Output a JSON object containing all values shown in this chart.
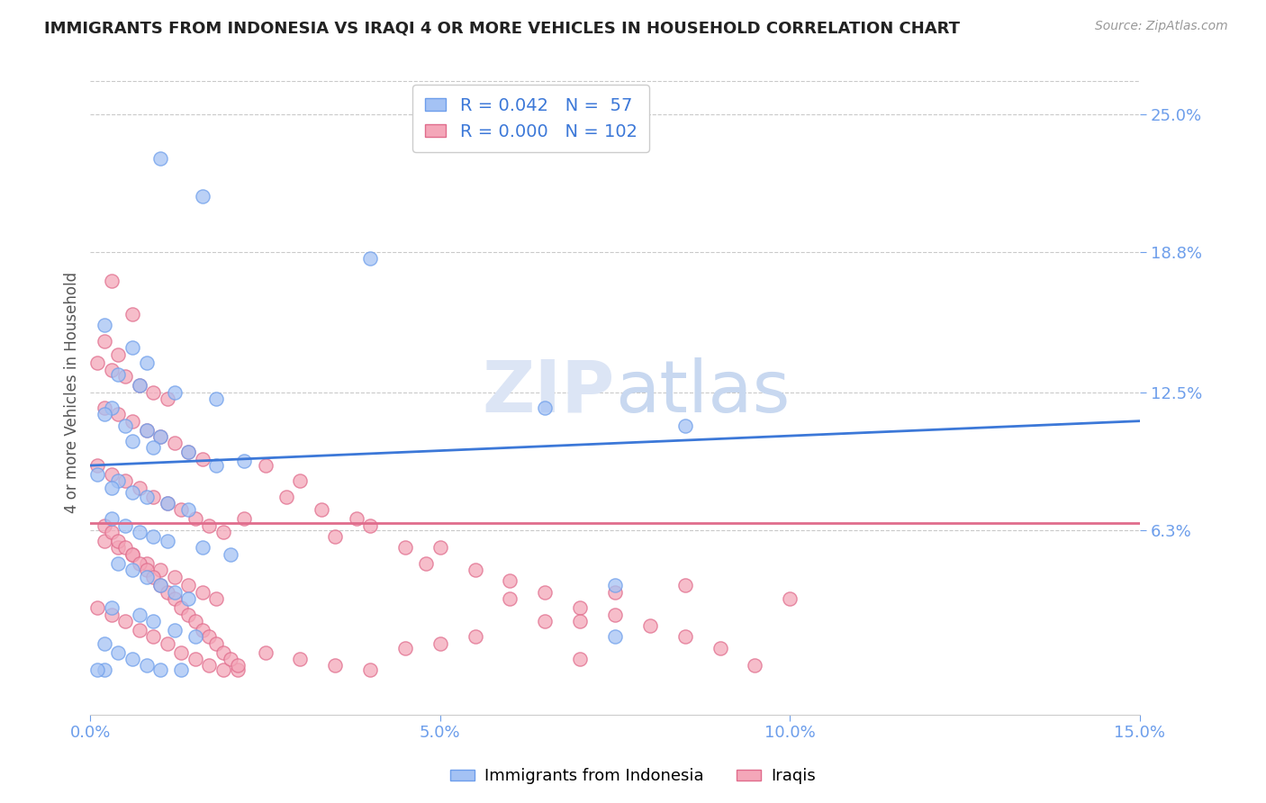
{
  "title": "IMMIGRANTS FROM INDONESIA VS IRAQI 4 OR MORE VEHICLES IN HOUSEHOLD CORRELATION CHART",
  "source": "Source: ZipAtlas.com",
  "ylabel": "4 or more Vehicles in Household",
  "legend_labels": [
    "Immigrants from Indonesia",
    "Iraqis"
  ],
  "r_values": [
    0.042,
    0.0
  ],
  "n_values": [
    57,
    102
  ],
  "xlim": [
    0.0,
    0.15
  ],
  "ylim": [
    -0.02,
    0.27
  ],
  "yticks": [
    0.063,
    0.125,
    0.188,
    0.25
  ],
  "ytick_labels": [
    "6.3%",
    "12.5%",
    "18.8%",
    "25.0%"
  ],
  "xticks": [
    0.0,
    0.05,
    0.1,
    0.15
  ],
  "xtick_labels": [
    "0.0%",
    "5.0%",
    "10.0%",
    "15.0%"
  ],
  "blue_color": "#a4c2f4",
  "pink_color": "#f4a7b9",
  "blue_edge_color": "#6d9eeb",
  "pink_edge_color": "#e06c8c",
  "blue_line_color": "#3c78d8",
  "pink_line_color": "#e06c8c",
  "tick_label_color": "#6d9eeb",
  "watermark_color": "#dce5f5",
  "background_color": "#ffffff",
  "grid_color": "#c9c9c9",
  "legend_r_color": "#3c78d8",
  "blue_trend": [
    0.0,
    0.092,
    0.15,
    0.112
  ],
  "pink_trend_y": 0.066,
  "blue_scatter": [
    [
      0.01,
      0.23
    ],
    [
      0.016,
      0.213
    ],
    [
      0.04,
      0.185
    ],
    [
      0.002,
      0.155
    ],
    [
      0.006,
      0.145
    ],
    [
      0.008,
      0.138
    ],
    [
      0.004,
      0.133
    ],
    [
      0.007,
      0.128
    ],
    [
      0.012,
      0.125
    ],
    [
      0.018,
      0.122
    ],
    [
      0.003,
      0.118
    ],
    [
      0.002,
      0.115
    ],
    [
      0.005,
      0.11
    ],
    [
      0.008,
      0.108
    ],
    [
      0.01,
      0.105
    ],
    [
      0.006,
      0.103
    ],
    [
      0.009,
      0.1
    ],
    [
      0.014,
      0.098
    ],
    [
      0.022,
      0.094
    ],
    [
      0.018,
      0.092
    ],
    [
      0.001,
      0.088
    ],
    [
      0.004,
      0.085
    ],
    [
      0.003,
      0.082
    ],
    [
      0.006,
      0.08
    ],
    [
      0.008,
      0.078
    ],
    [
      0.011,
      0.075
    ],
    [
      0.014,
      0.072
    ],
    [
      0.003,
      0.068
    ],
    [
      0.005,
      0.065
    ],
    [
      0.007,
      0.062
    ],
    [
      0.009,
      0.06
    ],
    [
      0.011,
      0.058
    ],
    [
      0.016,
      0.055
    ],
    [
      0.02,
      0.052
    ],
    [
      0.004,
      0.048
    ],
    [
      0.006,
      0.045
    ],
    [
      0.008,
      0.042
    ],
    [
      0.01,
      0.038
    ],
    [
      0.012,
      0.035
    ],
    [
      0.014,
      0.032
    ],
    [
      0.003,
      0.028
    ],
    [
      0.007,
      0.025
    ],
    [
      0.009,
      0.022
    ],
    [
      0.012,
      0.018
    ],
    [
      0.015,
      0.015
    ],
    [
      0.002,
      0.012
    ],
    [
      0.004,
      0.008
    ],
    [
      0.006,
      0.005
    ],
    [
      0.008,
      0.002
    ],
    [
      0.01,
      0.0
    ],
    [
      0.013,
      0.0
    ],
    [
      0.002,
      0.0
    ],
    [
      0.001,
      0.0
    ],
    [
      0.065,
      0.118
    ],
    [
      0.085,
      0.11
    ],
    [
      0.075,
      0.038
    ],
    [
      0.075,
      0.015
    ]
  ],
  "pink_scatter": [
    [
      0.003,
      0.175
    ],
    [
      0.006,
      0.16
    ],
    [
      0.002,
      0.148
    ],
    [
      0.004,
      0.142
    ],
    [
      0.001,
      0.138
    ],
    [
      0.003,
      0.135
    ],
    [
      0.005,
      0.132
    ],
    [
      0.007,
      0.128
    ],
    [
      0.009,
      0.125
    ],
    [
      0.011,
      0.122
    ],
    [
      0.002,
      0.118
    ],
    [
      0.004,
      0.115
    ],
    [
      0.006,
      0.112
    ],
    [
      0.008,
      0.108
    ],
    [
      0.01,
      0.105
    ],
    [
      0.012,
      0.102
    ],
    [
      0.014,
      0.098
    ],
    [
      0.016,
      0.095
    ],
    [
      0.001,
      0.092
    ],
    [
      0.003,
      0.088
    ],
    [
      0.005,
      0.085
    ],
    [
      0.007,
      0.082
    ],
    [
      0.009,
      0.078
    ],
    [
      0.011,
      0.075
    ],
    [
      0.013,
      0.072
    ],
    [
      0.015,
      0.068
    ],
    [
      0.017,
      0.065
    ],
    [
      0.019,
      0.062
    ],
    [
      0.002,
      0.058
    ],
    [
      0.004,
      0.055
    ],
    [
      0.006,
      0.052
    ],
    [
      0.008,
      0.048
    ],
    [
      0.01,
      0.045
    ],
    [
      0.012,
      0.042
    ],
    [
      0.014,
      0.038
    ],
    [
      0.016,
      0.035
    ],
    [
      0.018,
      0.032
    ],
    [
      0.001,
      0.028
    ],
    [
      0.003,
      0.025
    ],
    [
      0.005,
      0.022
    ],
    [
      0.007,
      0.018
    ],
    [
      0.009,
      0.015
    ],
    [
      0.011,
      0.012
    ],
    [
      0.013,
      0.008
    ],
    [
      0.015,
      0.005
    ],
    [
      0.017,
      0.002
    ],
    [
      0.019,
      0.0
    ],
    [
      0.021,
      0.0
    ],
    [
      0.002,
      0.065
    ],
    [
      0.003,
      0.062
    ],
    [
      0.004,
      0.058
    ],
    [
      0.005,
      0.055
    ],
    [
      0.006,
      0.052
    ],
    [
      0.007,
      0.048
    ],
    [
      0.008,
      0.045
    ],
    [
      0.009,
      0.042
    ],
    [
      0.01,
      0.038
    ],
    [
      0.011,
      0.035
    ],
    [
      0.012,
      0.032
    ],
    [
      0.013,
      0.028
    ],
    [
      0.014,
      0.025
    ],
    [
      0.015,
      0.022
    ],
    [
      0.016,
      0.018
    ],
    [
      0.017,
      0.015
    ],
    [
      0.018,
      0.012
    ],
    [
      0.019,
      0.008
    ],
    [
      0.02,
      0.005
    ],
    [
      0.021,
      0.002
    ],
    [
      0.022,
      0.068
    ],
    [
      0.025,
      0.092
    ],
    [
      0.03,
      0.085
    ],
    [
      0.028,
      0.078
    ],
    [
      0.033,
      0.072
    ],
    [
      0.038,
      0.068
    ],
    [
      0.04,
      0.065
    ],
    [
      0.035,
      0.06
    ],
    [
      0.045,
      0.055
    ],
    [
      0.05,
      0.055
    ],
    [
      0.048,
      0.048
    ],
    [
      0.055,
      0.045
    ],
    [
      0.06,
      0.04
    ],
    [
      0.06,
      0.032
    ],
    [
      0.065,
      0.035
    ],
    [
      0.07,
      0.028
    ],
    [
      0.07,
      0.022
    ],
    [
      0.075,
      0.025
    ],
    [
      0.08,
      0.02
    ],
    [
      0.085,
      0.015
    ],
    [
      0.09,
      0.01
    ],
    [
      0.095,
      0.002
    ],
    [
      0.1,
      0.032
    ],
    [
      0.025,
      0.008
    ],
    [
      0.03,
      0.005
    ],
    [
      0.035,
      0.002
    ],
    [
      0.04,
      0.0
    ],
    [
      0.045,
      0.01
    ],
    [
      0.05,
      0.012
    ],
    [
      0.055,
      0.015
    ],
    [
      0.065,
      0.022
    ],
    [
      0.07,
      0.005
    ],
    [
      0.075,
      0.035
    ],
    [
      0.085,
      0.038
    ]
  ]
}
